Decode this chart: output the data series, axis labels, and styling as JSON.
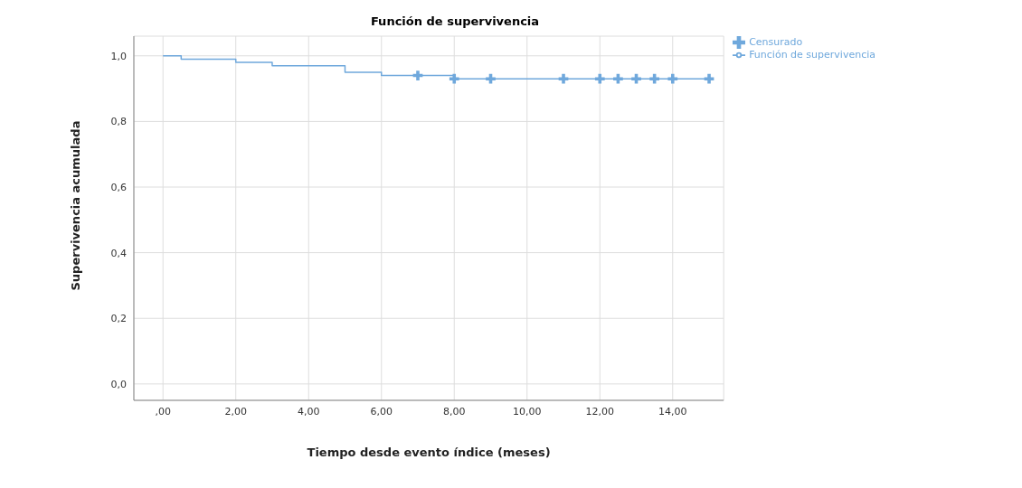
{
  "chart_data": {
    "type": "step",
    "title": "Función de supervivencia",
    "xlabel": "Tiempo desde evento índice (meses)",
    "ylabel": "Supervivencia acumulada",
    "series": [
      {
        "name": "Función de supervivencia",
        "color": "#6fa8dc",
        "x": [
          0,
          0.5,
          2,
          3,
          5,
          6,
          8,
          15
        ],
        "values": [
          1,
          0.99,
          0.98,
          0.97,
          0.95,
          0.94,
          0.93,
          0.93
        ],
        "marker": "none"
      },
      {
        "name": "Censurado",
        "type": "scatter",
        "color": "#6fa8dc",
        "x": [
          7,
          8,
          9,
          11,
          12,
          12.5,
          13,
          13.5,
          14,
          15
        ],
        "values": [
          0.94,
          0.93,
          0.93,
          0.93,
          0.93,
          0.93,
          0.93,
          0.93,
          0.93,
          0.93
        ],
        "marker": "cross"
      }
    ],
    "xlim": [
      -0.8,
      15.4
    ],
    "xticks": [
      {
        "value": 0,
        "label": ",00"
      },
      {
        "value": 2,
        "label": "2,00"
      },
      {
        "value": 4,
        "label": "4,00"
      },
      {
        "value": 6,
        "label": "6,00"
      },
      {
        "value": 8,
        "label": "8,00"
      },
      {
        "value": 10,
        "label": "10,00"
      },
      {
        "value": 12,
        "label": "12,00"
      },
      {
        "value": 14,
        "label": "14,00"
      }
    ],
    "ylim": [
      -0.05,
      1.06
    ],
    "yticks": [
      {
        "value": 0,
        "label": "0,0"
      },
      {
        "value": 0.2,
        "label": "0,2"
      },
      {
        "value": 0.4,
        "label": "0,4"
      },
      {
        "value": 0.6,
        "label": "0,6"
      },
      {
        "value": 0.8,
        "label": "0,8"
      },
      {
        "value": 1,
        "label": "1,0"
      }
    ],
    "grid": true,
    "legend": "top right"
  }
}
